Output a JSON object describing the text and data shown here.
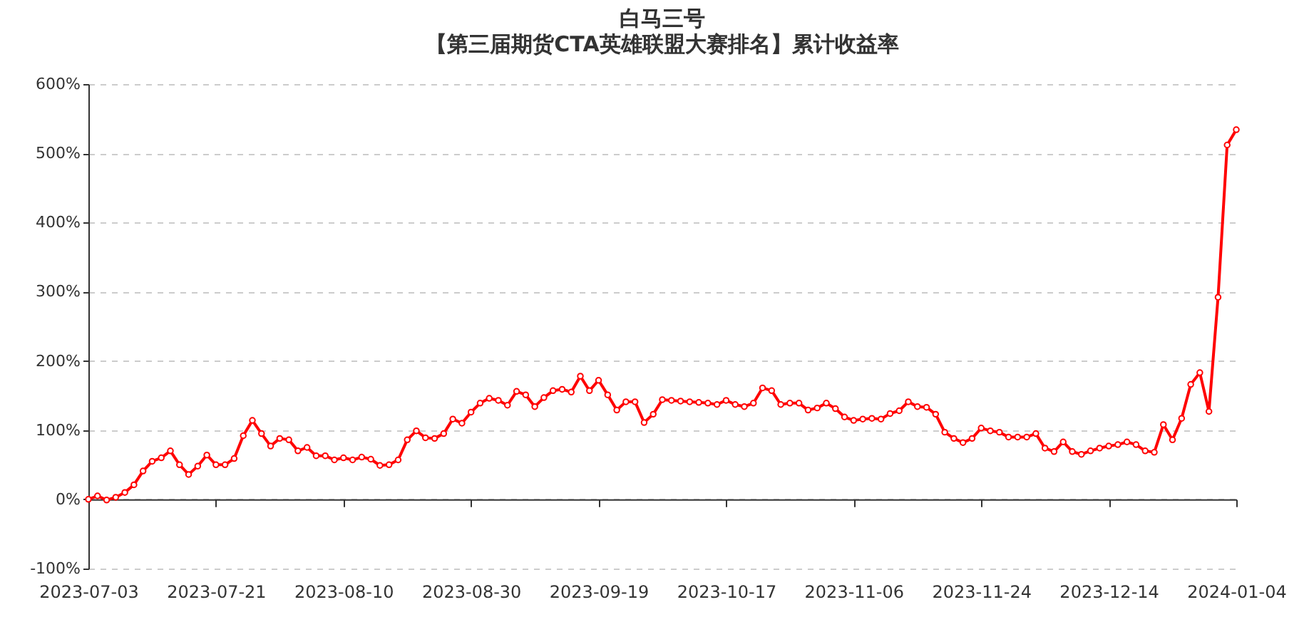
{
  "chart_data": {
    "type": "line",
    "title": "白马三号",
    "subtitle": "【第三届期货CTA英雄联盟大赛排名】累计收益率",
    "categories": [
      "2023-07-03",
      null,
      null,
      null,
      null,
      null,
      null,
      null,
      null,
      null,
      null,
      null,
      null,
      null,
      "2023-07-21",
      null,
      null,
      null,
      null,
      null,
      null,
      null,
      null,
      null,
      null,
      null,
      null,
      null,
      "2023-08-10",
      null,
      null,
      null,
      null,
      null,
      null,
      null,
      null,
      null,
      null,
      null,
      null,
      null,
      "2023-08-30",
      null,
      null,
      null,
      null,
      null,
      null,
      null,
      null,
      null,
      null,
      null,
      null,
      null,
      "2023-09-19",
      null,
      null,
      null,
      null,
      null,
      null,
      null,
      null,
      null,
      null,
      null,
      null,
      null,
      "2023-10-17",
      null,
      null,
      null,
      null,
      null,
      null,
      null,
      null,
      null,
      null,
      null,
      null,
      null,
      "2023-11-06",
      null,
      null,
      null,
      null,
      null,
      null,
      null,
      null,
      null,
      null,
      null,
      null,
      null,
      "2023-11-24",
      null,
      null,
      null,
      null,
      null,
      null,
      null,
      null,
      null,
      null,
      null,
      null,
      null,
      "2023-12-14",
      null,
      null,
      null,
      null,
      null,
      null,
      null,
      null,
      null,
      null,
      null,
      null,
      null,
      "2024-01-04"
    ],
    "series": [
      {
        "color": "#ff0000",
        "values": [
          0,
          5,
          -1,
          3,
          10,
          21,
          41,
          55,
          60,
          70,
          50,
          36,
          48,
          64,
          50,
          50,
          59,
          92,
          114,
          95,
          77,
          88,
          86,
          70,
          75,
          63,
          63,
          57,
          60,
          57,
          61,
          58,
          49,
          50,
          57,
          86,
          99,
          89,
          88,
          95,
          116,
          110,
          126,
          139,
          146,
          143,
          136,
          156,
          151,
          134,
          147,
          157,
          159,
          155,
          178,
          157,
          172,
          151,
          129,
          141,
          141,
          111,
          123,
          144,
          143,
          142,
          141,
          140,
          139,
          137,
          143,
          137,
          134,
          139,
          161,
          157,
          137,
          139,
          139,
          129,
          132,
          139,
          131,
          119,
          114,
          116,
          117,
          116,
          124,
          128,
          141,
          134,
          133,
          123,
          97,
          88,
          82,
          88,
          103,
          99,
          97,
          90,
          90,
          90,
          95,
          74,
          69,
          83,
          69,
          65,
          70,
          74,
          77,
          79,
          83,
          79,
          70,
          68,
          108,
          86,
          117,
          166,
          183,
          127,
          292,
          512,
          534
        ]
      }
    ],
    "ylim": [
      -100,
      600
    ],
    "yticks": [
      {
        "value": -100,
        "label": "-100%"
      },
      {
        "value": 0,
        "label": "0%"
      },
      {
        "value": 100,
        "label": "100%"
      },
      {
        "value": 200,
        "label": "200%"
      },
      {
        "value": 300,
        "label": "300%"
      },
      {
        "value": 400,
        "label": "400%"
      },
      {
        "value": 500,
        "label": "500%"
      },
      {
        "value": 600,
        "label": "600%"
      }
    ],
    "grid": "y",
    "marker": "circle",
    "line_style": "solid"
  }
}
